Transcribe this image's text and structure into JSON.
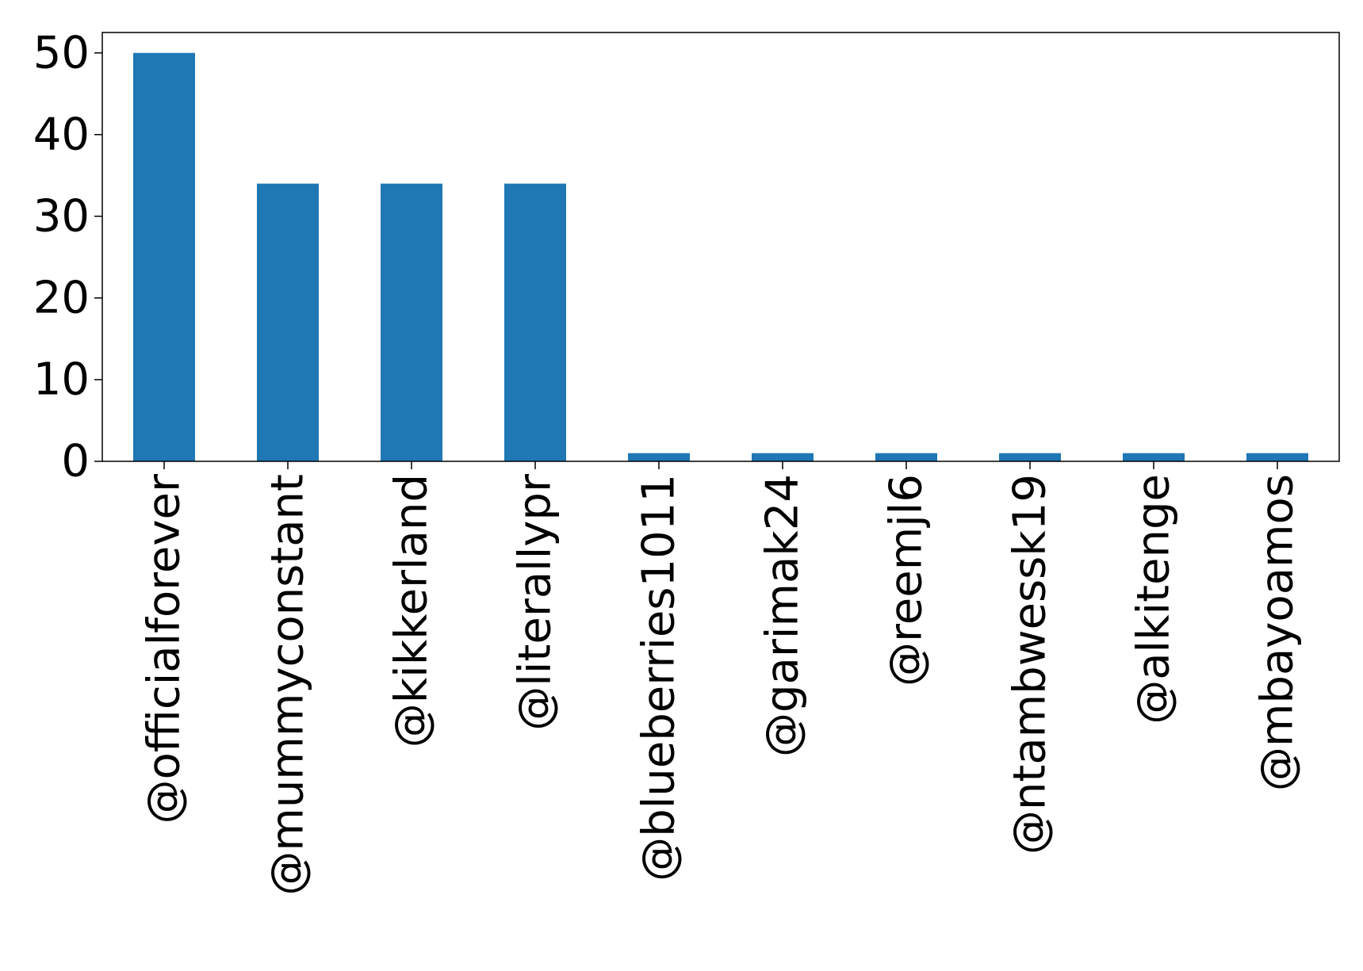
{
  "chart_data": {
    "type": "bar",
    "title": "",
    "xlabel": "",
    "ylabel": "",
    "categories": [
      "@officialforever",
      "@mummyconstant",
      "@kikkerland",
      "@literallypr",
      "@blueberries1011",
      "@garimak24",
      "@reemjl6",
      "@ntambwessk19",
      "@alkitenge",
      "@mbayoamos"
    ],
    "values": [
      50,
      34,
      34,
      34,
      1,
      1,
      1,
      1,
      1,
      1
    ],
    "ylim": [
      0,
      52.5
    ],
    "yticks": [
      0,
      10,
      20,
      30,
      40,
      50
    ],
    "bar_color": "#1f77b4",
    "grid": false,
    "legend": "none"
  }
}
